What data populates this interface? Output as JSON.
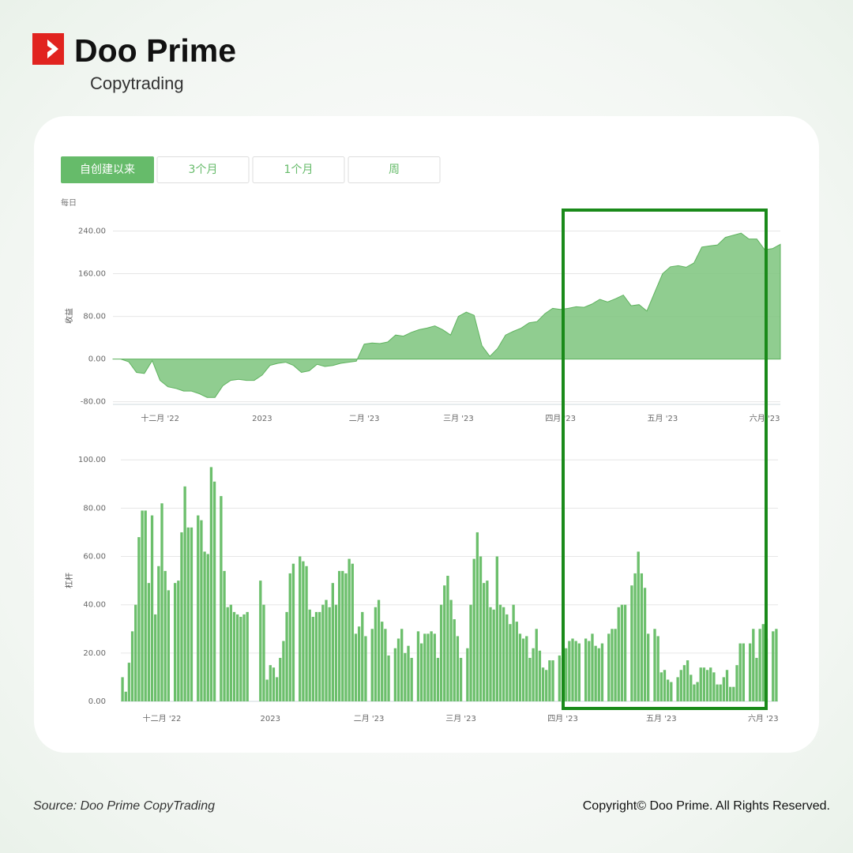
{
  "header": {
    "brand": "Doo Prime",
    "subtitle": "Copytrading"
  },
  "tabs": [
    "自创建以来",
    "3个月",
    "1个月",
    "周"
  ],
  "chart_data": [
    {
      "type": "area",
      "frequency_label": "每日",
      "y_label": "收益",
      "color": "#7cc47c",
      "grid": true,
      "ylim": [
        -85,
        260
      ],
      "yticks": [
        {
          "value": -80,
          "label": "-80.00"
        },
        {
          "value": 0,
          "label": "0.00"
        },
        {
          "value": 80,
          "label": "80.00"
        },
        {
          "value": 160,
          "label": "160.00"
        },
        {
          "value": 240,
          "label": "240.00"
        }
      ],
      "categories": [
        null,
        null,
        null,
        null,
        null,
        null,
        "十二月 '22",
        null,
        null,
        null,
        null,
        null,
        null,
        null,
        null,
        null,
        null,
        null,
        null,
        "2023",
        null,
        null,
        null,
        null,
        null,
        null,
        null,
        null,
        null,
        null,
        null,
        null,
        "二月 '23",
        null,
        null,
        null,
        null,
        null,
        null,
        null,
        null,
        null,
        null,
        null,
        "三月 '23",
        null,
        null,
        null,
        null,
        null,
        null,
        null,
        null,
        null,
        null,
        null,
        null,
        "四月 '23",
        null,
        null,
        null,
        null,
        null,
        null,
        null,
        null,
        null,
        null,
        null,
        null,
        "五月 '23",
        null,
        null,
        null,
        null,
        null,
        null,
        null,
        null,
        null,
        null,
        null,
        null,
        "六月 '23",
        null,
        null
      ],
      "values": [
        0,
        0,
        -5,
        -25,
        -27,
        -3,
        -40,
        -52,
        -55,
        -60,
        -60,
        -65,
        -72,
        -72,
        -50,
        -40,
        -38,
        -40,
        -40,
        -30,
        -12,
        -8,
        -6,
        -12,
        -25,
        -22,
        -10,
        -14,
        -12,
        -8,
        -6,
        -4,
        28,
        30,
        29,
        32,
        45,
        43,
        50,
        55,
        58,
        62,
        55,
        45,
        80,
        88,
        82,
        25,
        5,
        20,
        45,
        52,
        58,
        68,
        70,
        85,
        95,
        93,
        95,
        98,
        97,
        103,
        112,
        107,
        113,
        120,
        100,
        102,
        90,
        125,
        160,
        173,
        175,
        172,
        180,
        210,
        212,
        214,
        228,
        232,
        236,
        225,
        225,
        205,
        207,
        215
      ]
    },
    {
      "type": "bar",
      "y_label": "杠杆",
      "color": "#6cbf6c",
      "grid": true,
      "ylim": [
        0,
        104
      ],
      "yticks": [
        {
          "value": 0,
          "label": "0.00"
        },
        {
          "value": 20,
          "label": "20.00"
        },
        {
          "value": 40,
          "label": "40.00"
        },
        {
          "value": 60,
          "label": "60.00"
        },
        {
          "value": 80,
          "label": "80.00"
        },
        {
          "value": 100,
          "label": "100.00"
        }
      ],
      "categories": [
        null,
        null,
        null,
        null,
        null,
        null,
        null,
        null,
        null,
        null,
        null,
        null,
        "十二月 '22",
        null,
        null,
        null,
        null,
        null,
        null,
        null,
        null,
        null,
        null,
        null,
        null,
        null,
        null,
        null,
        null,
        null,
        null,
        null,
        null,
        null,
        null,
        null,
        null,
        null,
        null,
        null,
        null,
        null,
        null,
        null,
        null,
        "2023",
        null,
        null,
        null,
        null,
        null,
        null,
        null,
        null,
        null,
        null,
        null,
        null,
        null,
        null,
        null,
        null,
        null,
        null,
        null,
        null,
        null,
        null,
        null,
        null,
        null,
        null,
        null,
        null,
        null,
        "二月 '23",
        null,
        null,
        null,
        null,
        null,
        null,
        null,
        null,
        null,
        null,
        null,
        null,
        null,
        null,
        null,
        null,
        null,
        null,
        null,
        null,
        null,
        null,
        null,
        null,
        null,
        null,
        null,
        "三月 '23",
        null,
        null,
        null,
        null,
        null,
        null,
        null,
        null,
        null,
        null,
        null,
        null,
        null,
        null,
        null,
        null,
        null,
        null,
        null,
        null,
        null,
        null,
        null,
        null,
        null,
        null,
        null,
        null,
        null,
        null,
        "四月 '23",
        null,
        null,
        null,
        null,
        null,
        null,
        null,
        null,
        null,
        null,
        null,
        null,
        null,
        null,
        null,
        null,
        null,
        null,
        null,
        null,
        null,
        null,
        null,
        null,
        null,
        null,
        null,
        null,
        null,
        "五月 '23",
        null,
        null,
        null,
        null,
        null,
        null,
        null,
        null,
        null,
        null,
        null,
        null,
        null,
        null,
        null,
        null,
        null,
        null,
        null,
        null,
        null,
        null,
        null,
        null,
        null,
        null,
        null,
        null,
        null,
        null,
        "六月 '23",
        null,
        null,
        null,
        null
      ],
      "values": [
        10,
        4,
        16,
        29,
        40,
        68,
        79,
        79,
        49,
        77,
        36,
        56,
        82,
        54,
        46,
        null,
        49,
        50,
        70,
        89,
        72,
        72,
        null,
        77,
        75,
        62,
        61,
        97,
        91,
        null,
        85,
        54,
        39,
        40,
        37,
        36,
        35,
        36,
        37,
        null,
        null,
        null,
        50,
        40,
        9,
        15,
        14,
        10,
        18,
        25,
        37,
        53,
        57,
        null,
        60,
        58,
        56,
        38,
        35,
        37,
        37,
        40,
        42,
        39,
        49,
        40,
        54,
        54,
        53,
        59,
        57,
        28,
        31,
        37,
        27,
        null,
        30,
        39,
        42,
        33,
        30,
        19,
        null,
        22,
        26,
        30,
        20,
        23,
        18,
        null,
        29,
        24,
        28,
        28,
        29,
        28,
        18,
        40,
        48,
        52,
        42,
        34,
        27,
        18,
        null,
        22,
        40,
        59,
        70,
        60,
        49,
        50,
        39,
        38,
        60,
        40,
        39,
        36,
        32,
        40,
        33,
        28,
        26,
        27,
        18,
        22,
        30,
        21,
        14,
        13,
        17,
        17,
        null,
        19,
        18,
        22,
        25,
        26,
        25,
        24,
        null,
        26,
        25,
        28,
        23,
        22,
        24,
        null,
        28,
        30,
        30,
        39,
        40,
        40,
        null,
        48,
        53,
        62,
        53,
        47,
        28,
        null,
        30,
        27,
        12,
        13,
        9,
        8,
        null,
        10,
        13,
        15,
        17,
        11,
        7,
        8,
        14,
        14,
        13,
        14,
        12,
        7,
        7,
        10,
        13,
        6,
        6,
        15,
        24,
        24,
        null,
        24,
        30,
        18,
        30,
        32,
        26,
        null,
        29,
        30
      ]
    }
  ],
  "footer": {
    "source": "Source: Doo Prime CopyTrading",
    "copyright": "Copyright© Doo Prime. All Rights Reserved."
  }
}
